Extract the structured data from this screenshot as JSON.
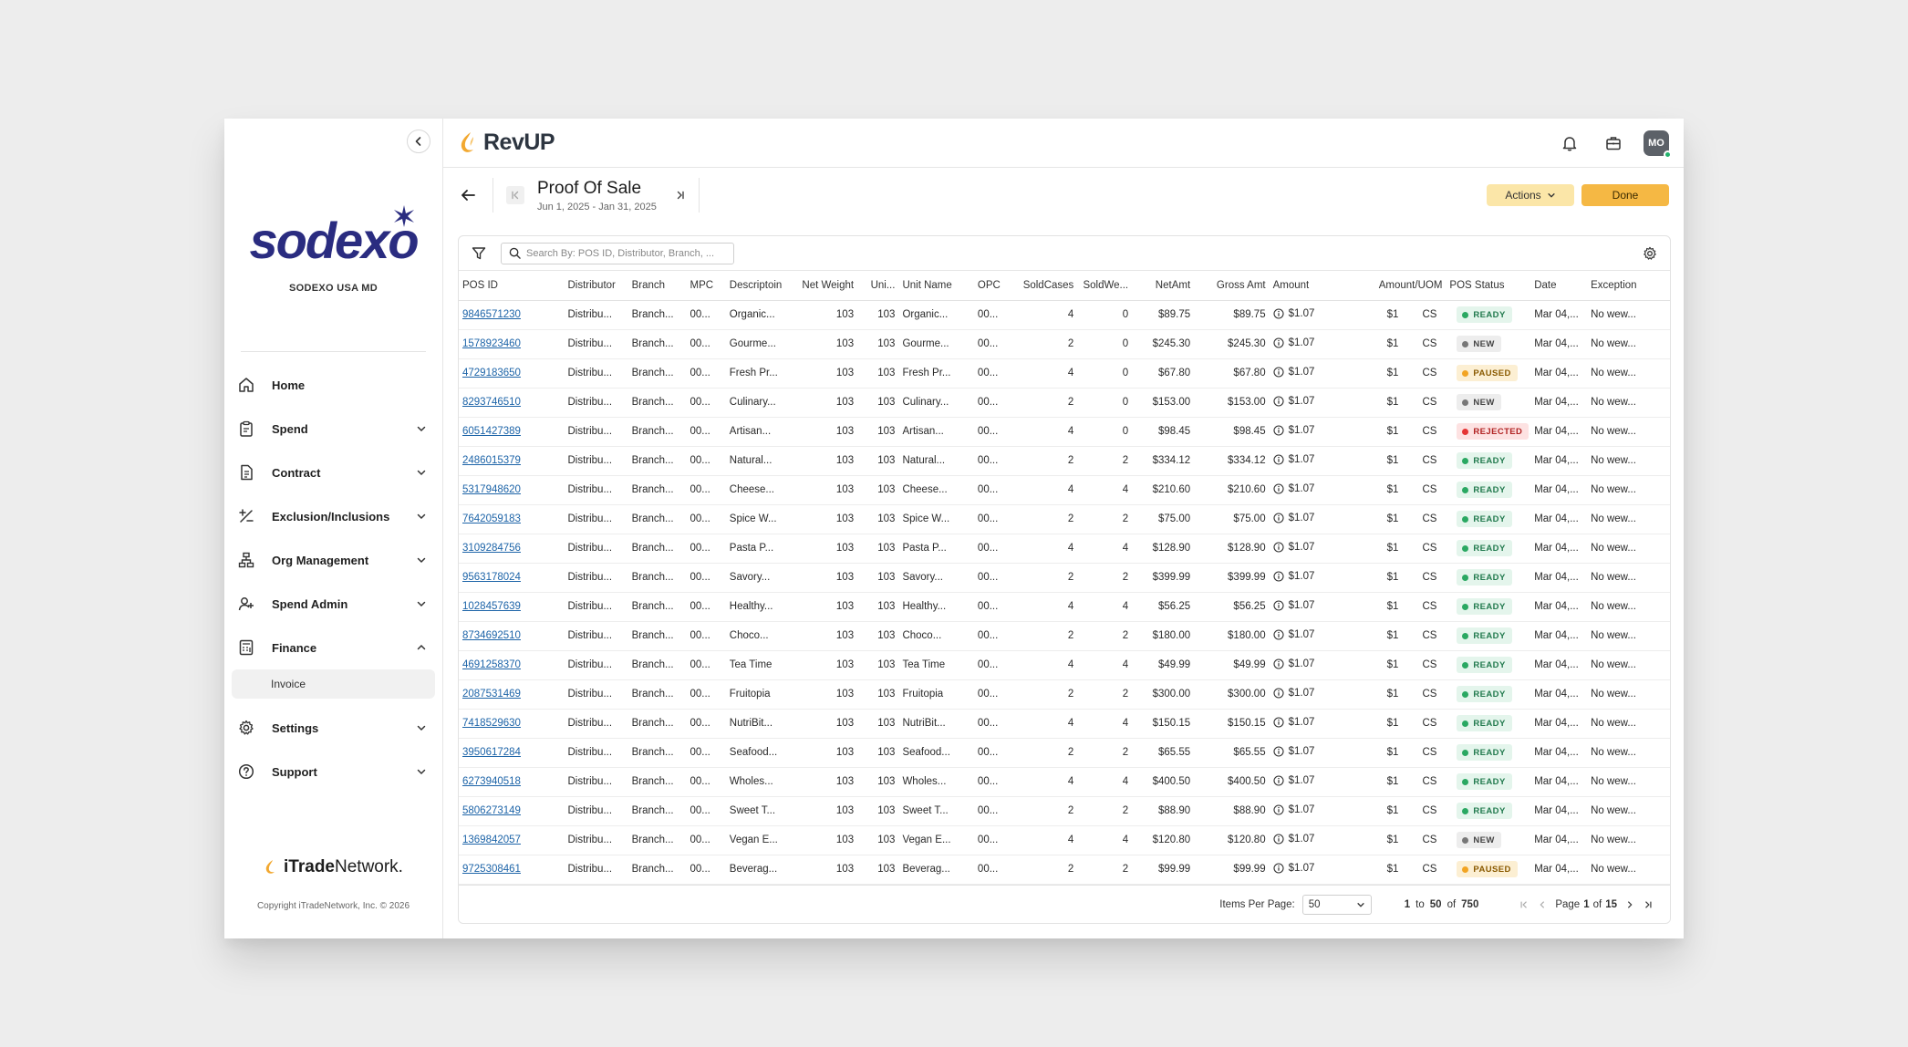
{
  "sidebar": {
    "org_name": "SODEXO USA MD",
    "brand_word": "sodexo",
    "nav": [
      {
        "label": "Home",
        "icon": "home-icon",
        "expandable": false
      },
      {
        "label": "Spend",
        "icon": "clipboard-icon",
        "expandable": true
      },
      {
        "label": "Contract",
        "icon": "document-icon",
        "expandable": true
      },
      {
        "label": "Exclusion/Inclusions",
        "icon": "plus-minus-icon",
        "expandable": true
      },
      {
        "label": "Org Management",
        "icon": "org-chart-icon",
        "expandable": true
      },
      {
        "label": "Spend Admin",
        "icon": "user-plus-icon",
        "expandable": true
      },
      {
        "label": "Finance",
        "icon": "calculator-icon",
        "expandable": true,
        "expanded": true
      },
      {
        "label": "Settings",
        "icon": "gear-icon",
        "expandable": true
      },
      {
        "label": "Support",
        "icon": "help-icon",
        "expandable": true
      }
    ],
    "finance_sub": "Invoice",
    "footer_brand_a": "iTrade",
    "footer_brand_b": "Network.",
    "copyright": "Copyright iTradeNetwork, Inc. © 2026"
  },
  "header": {
    "app_name": "RevUP",
    "avatar": "MO"
  },
  "page": {
    "title": "Proof Of Sale",
    "date_range": "Jun 1, 2025 - Jan 31, 2025",
    "actions_label": "Actions",
    "done_label": "Done",
    "search_placeholder": "Search By: POS ID, Distributor, Branch, ..."
  },
  "colors": {
    "accent": "#f5b844",
    "actions_bg": "#fbe6a8",
    "link": "#1d64a8",
    "brand_navy": "#2a2c80",
    "brand_red": "#e2212d"
  },
  "table": {
    "columns": [
      "POS ID",
      "Distributor",
      "Branch",
      "MPC",
      "Descriptoin",
      "Net Weight",
      "Uni...",
      "Unit Name",
      "OPC",
      "SoldCases",
      "SoldWe...",
      "NetAmt",
      "Gross Amt",
      "Amount",
      "Amount/UOM",
      "POS Status",
      "Date",
      "Exception"
    ],
    "rows": [
      {
        "id": "9846571230",
        "dist": "Distribu...",
        "branch": "Branch...",
        "mpc": "00...",
        "desc": "Organic...",
        "nw": "103",
        "uni": "103",
        "uname": "Organic...",
        "opc": "00...",
        "cases": "4",
        "sw": "0",
        "net": "$89.75",
        "gross": "$89.75",
        "amount": "$1.07",
        "uom_amt": "$1",
        "uom": "CS",
        "status": "READY",
        "date": "Mar 04,...",
        "exc": "No wew..."
      },
      {
        "id": "1578923460",
        "dist": "Distribu...",
        "branch": "Branch...",
        "mpc": "00...",
        "desc": "Gourme...",
        "nw": "103",
        "uni": "103",
        "uname": "Gourme...",
        "opc": "00...",
        "cases": "2",
        "sw": "0",
        "net": "$245.30",
        "gross": "$245.30",
        "amount": "$1.07",
        "uom_amt": "$1",
        "uom": "CS",
        "status": "NEW",
        "date": "Mar 04,...",
        "exc": "No wew..."
      },
      {
        "id": "4729183650",
        "dist": "Distribu...",
        "branch": "Branch...",
        "mpc": "00...",
        "desc": "Fresh Pr...",
        "nw": "103",
        "uni": "103",
        "uname": "Fresh Pr...",
        "opc": "00...",
        "cases": "4",
        "sw": "0",
        "net": "$67.80",
        "gross": "$67.80",
        "amount": "$1.07",
        "uom_amt": "$1",
        "uom": "CS",
        "status": "PAUSED",
        "date": "Mar 04,...",
        "exc": "No wew..."
      },
      {
        "id": "8293746510",
        "dist": "Distribu...",
        "branch": "Branch...",
        "mpc": "00...",
        "desc": "Culinary...",
        "nw": "103",
        "uni": "103",
        "uname": "Culinary...",
        "opc": "00...",
        "cases": "2",
        "sw": "0",
        "net": "$153.00",
        "gross": "$153.00",
        "amount": "$1.07",
        "uom_amt": "$1",
        "uom": "CS",
        "status": "NEW",
        "date": "Mar 04,...",
        "exc": "No wew..."
      },
      {
        "id": "6051427389",
        "dist": "Distribu...",
        "branch": "Branch...",
        "mpc": "00...",
        "desc": "Artisan...",
        "nw": "103",
        "uni": "103",
        "uname": "Artisan...",
        "opc": "00...",
        "cases": "4",
        "sw": "0",
        "net": "$98.45",
        "gross": "$98.45",
        "amount": "$1.07",
        "uom_amt": "$1",
        "uom": "CS",
        "status": "REJECTED",
        "date": "Mar 04,...",
        "exc": "No wew..."
      },
      {
        "id": "2486015379",
        "dist": "Distribu...",
        "branch": "Branch...",
        "mpc": "00...",
        "desc": "Natural...",
        "nw": "103",
        "uni": "103",
        "uname": "Natural...",
        "opc": "00...",
        "cases": "2",
        "sw": "2",
        "net": "$334.12",
        "gross": "$334.12",
        "amount": "$1.07",
        "uom_amt": "$1",
        "uom": "CS",
        "status": "READY",
        "date": "Mar 04,...",
        "exc": "No wew..."
      },
      {
        "id": "5317948620",
        "dist": "Distribu...",
        "branch": "Branch...",
        "mpc": "00...",
        "desc": "Cheese...",
        "nw": "103",
        "uni": "103",
        "uname": "Cheese...",
        "opc": "00...",
        "cases": "4",
        "sw": "4",
        "net": "$210.60",
        "gross": "$210.60",
        "amount": "$1.07",
        "uom_amt": "$1",
        "uom": "CS",
        "status": "READY",
        "date": "Mar 04,...",
        "exc": "No wew..."
      },
      {
        "id": "7642059183",
        "dist": "Distribu...",
        "branch": "Branch...",
        "mpc": "00...",
        "desc": "Spice W...",
        "nw": "103",
        "uni": "103",
        "uname": "Spice W...",
        "opc": "00...",
        "cases": "2",
        "sw": "2",
        "net": "$75.00",
        "gross": "$75.00",
        "amount": "$1.07",
        "uom_amt": "$1",
        "uom": "CS",
        "status": "READY",
        "date": "Mar 04,...",
        "exc": "No wew..."
      },
      {
        "id": "3109284756",
        "dist": "Distribu...",
        "branch": "Branch...",
        "mpc": "00...",
        "desc": "Pasta P...",
        "nw": "103",
        "uni": "103",
        "uname": "Pasta P...",
        "opc": "00...",
        "cases": "4",
        "sw": "4",
        "net": "$128.90",
        "gross": "$128.90",
        "amount": "$1.07",
        "uom_amt": "$1",
        "uom": "CS",
        "status": "READY",
        "date": "Mar 04,...",
        "exc": "No wew..."
      },
      {
        "id": "9563178024",
        "dist": "Distribu...",
        "branch": "Branch...",
        "mpc": "00...",
        "desc": "Savory...",
        "nw": "103",
        "uni": "103",
        "uname": "Savory...",
        "opc": "00...",
        "cases": "2",
        "sw": "2",
        "net": "$399.99",
        "gross": "$399.99",
        "amount": "$1.07",
        "uom_amt": "$1",
        "uom": "CS",
        "status": "READY",
        "date": "Mar 04,...",
        "exc": "No wew..."
      },
      {
        "id": "1028457639",
        "dist": "Distribu...",
        "branch": "Branch...",
        "mpc": "00...",
        "desc": "Healthy...",
        "nw": "103",
        "uni": "103",
        "uname": "Healthy...",
        "opc": "00...",
        "cases": "4",
        "sw": "4",
        "net": "$56.25",
        "gross": "$56.25",
        "amount": "$1.07",
        "uom_amt": "$1",
        "uom": "CS",
        "status": "READY",
        "date": "Mar 04,...",
        "exc": "No wew..."
      },
      {
        "id": "8734692510",
        "dist": "Distribu...",
        "branch": "Branch...",
        "mpc": "00...",
        "desc": "Choco...",
        "nw": "103",
        "uni": "103",
        "uname": "Choco...",
        "opc": "00...",
        "cases": "2",
        "sw": "2",
        "net": "$180.00",
        "gross": "$180.00",
        "amount": "$1.07",
        "uom_amt": "$1",
        "uom": "CS",
        "status": "READY",
        "date": "Mar 04,...",
        "exc": "No wew..."
      },
      {
        "id": "4691258370",
        "dist": "Distribu...",
        "branch": "Branch...",
        "mpc": "00...",
        "desc": "Tea Time",
        "nw": "103",
        "uni": "103",
        "uname": "Tea Time",
        "opc": "00...",
        "cases": "4",
        "sw": "4",
        "net": "$49.99",
        "gross": "$49.99",
        "amount": "$1.07",
        "uom_amt": "$1",
        "uom": "CS",
        "status": "READY",
        "date": "Mar 04,...",
        "exc": "No wew..."
      },
      {
        "id": "2087531469",
        "dist": "Distribu...",
        "branch": "Branch...",
        "mpc": "00...",
        "desc": "Fruitopia",
        "nw": "103",
        "uni": "103",
        "uname": "Fruitopia",
        "opc": "00...",
        "cases": "2",
        "sw": "2",
        "net": "$300.00",
        "gross": "$300.00",
        "amount": "$1.07",
        "uom_amt": "$1",
        "uom": "CS",
        "status": "READY",
        "date": "Mar 04,...",
        "exc": "No wew..."
      },
      {
        "id": "7418529630",
        "dist": "Distribu...",
        "branch": "Branch...",
        "mpc": "00...",
        "desc": "NutriBit...",
        "nw": "103",
        "uni": "103",
        "uname": "NutriBit...",
        "opc": "00...",
        "cases": "4",
        "sw": "4",
        "net": "$150.15",
        "gross": "$150.15",
        "amount": "$1.07",
        "uom_amt": "$1",
        "uom": "CS",
        "status": "READY",
        "date": "Mar 04,...",
        "exc": "No wew..."
      },
      {
        "id": "3950617284",
        "dist": "Distribu...",
        "branch": "Branch...",
        "mpc": "00...",
        "desc": "Seafood...",
        "nw": "103",
        "uni": "103",
        "uname": "Seafood...",
        "opc": "00...",
        "cases": "2",
        "sw": "2",
        "net": "$65.55",
        "gross": "$65.55",
        "amount": "$1.07",
        "uom_amt": "$1",
        "uom": "CS",
        "status": "READY",
        "date": "Mar 04,...",
        "exc": "No wew..."
      },
      {
        "id": "6273940518",
        "dist": "Distribu...",
        "branch": "Branch...",
        "mpc": "00...",
        "desc": "Wholes...",
        "nw": "103",
        "uni": "103",
        "uname": "Wholes...",
        "opc": "00...",
        "cases": "4",
        "sw": "4",
        "net": "$400.50",
        "gross": "$400.50",
        "amount": "$1.07",
        "uom_amt": "$1",
        "uom": "CS",
        "status": "READY",
        "date": "Mar 04,...",
        "exc": "No wew..."
      },
      {
        "id": "5806273149",
        "dist": "Distribu...",
        "branch": "Branch...",
        "mpc": "00...",
        "desc": "Sweet T...",
        "nw": "103",
        "uni": "103",
        "uname": "Sweet T...",
        "opc": "00...",
        "cases": "2",
        "sw": "2",
        "net": "$88.90",
        "gross": "$88.90",
        "amount": "$1.07",
        "uom_amt": "$1",
        "uom": "CS",
        "status": "READY",
        "date": "Mar 04,...",
        "exc": "No wew..."
      },
      {
        "id": "1369842057",
        "dist": "Distribu...",
        "branch": "Branch...",
        "mpc": "00...",
        "desc": "Vegan E...",
        "nw": "103",
        "uni": "103",
        "uname": "Vegan E...",
        "opc": "00...",
        "cases": "4",
        "sw": "4",
        "net": "$120.80",
        "gross": "$120.80",
        "amount": "$1.07",
        "uom_amt": "$1",
        "uom": "CS",
        "status": "NEW",
        "date": "Mar 04,...",
        "exc": "No wew..."
      },
      {
        "id": "9725308461",
        "dist": "Distribu...",
        "branch": "Branch...",
        "mpc": "00...",
        "desc": "Beverag...",
        "nw": "103",
        "uni": "103",
        "uname": "Beverag...",
        "opc": "00...",
        "cases": "2",
        "sw": "2",
        "net": "$99.99",
        "gross": "$99.99",
        "amount": "$1.07",
        "uom_amt": "$1",
        "uom": "CS",
        "status": "PAUSED",
        "date": "Mar 04,...",
        "exc": "No wew..."
      }
    ]
  },
  "pagination": {
    "items_per_page_label": "Items Per Page:",
    "items_per_page": "50",
    "range_from": "1",
    "to_word": "to",
    "range_to": "50",
    "of_word": "of",
    "total": "750",
    "page_word": "Page",
    "page": "1",
    "page_of_word": "of",
    "pages": "15"
  }
}
